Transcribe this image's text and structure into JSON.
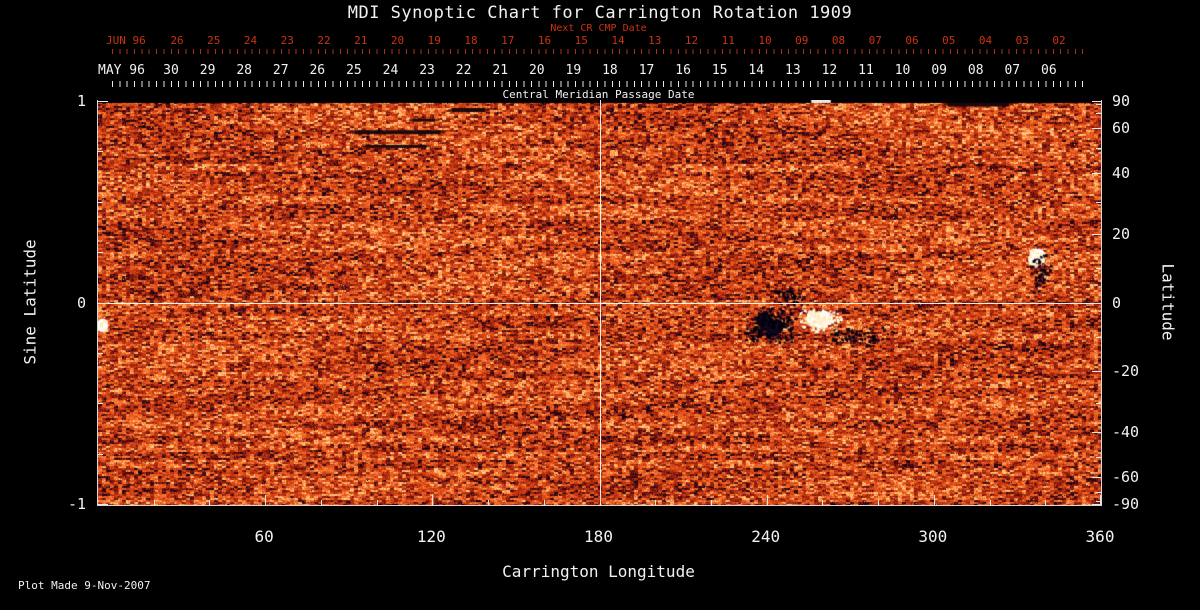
{
  "title": "MDI Synoptic Chart for Carrington Rotation 1909",
  "top_axis": {
    "next_cr_label": "Next CR CMP Date",
    "jun_label": "JUN 96",
    "jun_days": [
      "26",
      "25",
      "24",
      "23",
      "22",
      "21",
      "20",
      "19",
      "18",
      "17",
      "16",
      "15",
      "14",
      "13",
      "12",
      "11",
      "10",
      "09",
      "08",
      "07",
      "06",
      "05",
      "04",
      "03",
      "02"
    ],
    "may_label": "MAY 96",
    "may_days": [
      "30",
      "29",
      "28",
      "27",
      "26",
      "25",
      "24",
      "23",
      "22",
      "21",
      "20",
      "19",
      "18",
      "17",
      "16",
      "15",
      "14",
      "13",
      "12",
      "11",
      "10",
      "09",
      "08",
      "07",
      "06"
    ],
    "cmp_label": "Central Meridian Passage Date"
  },
  "footer": {
    "plot_made": "Plot Made  9-Nov-2007"
  },
  "chart_data": {
    "type": "heatmap",
    "title": "MDI Synoptic Chart for Carrington Rotation 1909",
    "xlabel": "Carrington Longitude",
    "ylabel_left": "Sine Latitude",
    "ylabel_right": "Latitude",
    "xlim": [
      0,
      360
    ],
    "ylim_sine": [
      -1,
      1
    ],
    "x_ticks": [
      60,
      120,
      180,
      240,
      300,
      360
    ],
    "y_left_ticks": [
      1,
      0,
      -1
    ],
    "y_right_ticks": [
      90,
      60,
      40,
      20,
      0,
      -20,
      -40,
      -60,
      -90
    ],
    "y_right_minor_ticks": [
      80,
      70,
      50,
      30,
      10,
      -10,
      -30,
      -50,
      -70,
      -80
    ],
    "crosshair": {
      "longitude": 180,
      "sine_latitude": 0
    },
    "colors": {
      "background": "#000000",
      "quiet_sun_low": "#7a1203",
      "quiet_sun_mid": "#dc4612",
      "quiet_sun_high": "#fc8030",
      "negative_polarity": "#050210",
      "positive_polarity": "#ffffff",
      "axis_text": "#f2f2f2",
      "cmp_red": "#cc3311"
    },
    "description": "Full-rotation photospheric magnetogram: mottled orange quiet-Sun field; large bipolar active region near 240-270 deg longitude just south of the equator (black negative / white positive patches); smaller bipolar region near 337 deg at +13 deg latitude; bright point at far left edge; short black data-gap streaks at high northern latitudes near 90-140 deg longitude; black strip along top edge.",
    "active_regions": [
      {
        "polarity": "negative",
        "lon": 241,
        "sinlat": -0.11,
        "rx_deg": 10,
        "ry_sin": 0.1,
        "n": 340,
        "core": 10
      },
      {
        "polarity": "positive",
        "lon": 259,
        "sinlat": -0.085,
        "rx_deg": 8,
        "ry_sin": 0.062,
        "n": 240,
        "core": 16
      },
      {
        "polarity": "negative",
        "lon": 272,
        "sinlat": -0.165,
        "rx_deg": 13,
        "ry_sin": 0.055,
        "n": 120,
        "core": 0
      },
      {
        "polarity": "negative",
        "lon": 248,
        "sinlat": 0.03,
        "rx_deg": 6,
        "ry_sin": 0.06,
        "n": 70,
        "core": 0
      },
      {
        "polarity": "positive",
        "lon": 337,
        "sinlat": 0.225,
        "rx_deg": 3.5,
        "ry_sin": 0.05,
        "n": 110,
        "core": 6
      },
      {
        "polarity": "negative",
        "lon": 338,
        "sinlat": 0.155,
        "rx_deg": 4,
        "ry_sin": 0.11,
        "n": 80,
        "core": 0
      },
      {
        "polarity": "positive",
        "lon": 1.5,
        "sinlat": -0.115,
        "rx_deg": 1.8,
        "ry_sin": 0.028,
        "n": 50,
        "core": 5
      }
    ],
    "data_gaps": [
      {
        "lon_start": 92,
        "lon_end": 123,
        "sinlat": 0.845,
        "h": 4
      },
      {
        "lon_start": 96,
        "lon_end": 118,
        "sinlat": 0.775,
        "h": 3
      },
      {
        "lon_start": 113,
        "lon_end": 121,
        "sinlat": 0.905,
        "h": 3
      },
      {
        "lon_start": 127,
        "lon_end": 139,
        "sinlat": 0.955,
        "h": 4
      },
      {
        "lon_start": 305,
        "lon_end": 327,
        "sinlat": 0.985,
        "h": 5
      }
    ],
    "top_edge": {
      "white_dash_lon": [
        256,
        263
      ]
    }
  }
}
